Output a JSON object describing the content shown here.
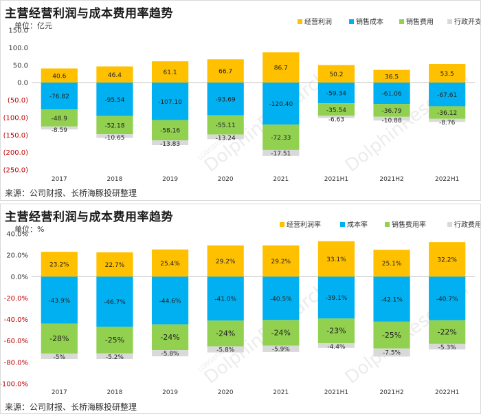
{
  "colors": {
    "profit": "#FFC000",
    "cost": "#00B0F0",
    "sales": "#92D050",
    "admin": "#D9D9D9",
    "negative_tick": "#C00000",
    "positive_tick": "#333333"
  },
  "source": "来源：公司财报、长桥海豚投研整理",
  "watermark": {
    "brand": "DolphinResearch",
    "small": "LONGBRIDGE"
  },
  "chart_data": [
    {
      "type": "bar",
      "stacked": true,
      "title": "主营经营利润与成本费用率趋势",
      "unit": "单位：亿元",
      "ylim": [
        -250,
        150
      ],
      "yticks": [
        -250,
        -200,
        -150,
        -100,
        -50,
        0,
        50,
        100,
        150
      ],
      "ytick_labels": [
        "(250.0)",
        "(200.0)",
        "(150.0)",
        "(100.0)",
        "(50.0)",
        "0.0",
        "50.0",
        "100.0",
        "150.0"
      ],
      "categories": [
        "2017",
        "2018",
        "2019",
        "2020",
        "2021",
        "2021H1",
        "2021H2",
        "2022H1"
      ],
      "series": [
        {
          "name": "经营利润",
          "color_key": "profit",
          "values": [
            40.6,
            46.4,
            61.1,
            66.7,
            86.7,
            50.2,
            36.5,
            53.5
          ],
          "labels": [
            "40.6",
            "46.4",
            "61.1",
            "66.7",
            "86.7",
            "50.2",
            "36.5",
            "53.5"
          ]
        },
        {
          "name": "销售成本",
          "color_key": "cost",
          "values": [
            -76.82,
            -95.54,
            -107.1,
            -93.69,
            -120.4,
            -59.34,
            -61.06,
            -67.61
          ],
          "labels": [
            "-76.82",
            "-95.54",
            "-107.10",
            "-93.69",
            "-120.40",
            "-59.34",
            "-61.06",
            "-67.61"
          ]
        },
        {
          "name": "销售费用",
          "color_key": "sales",
          "values": [
            -48.9,
            -52.18,
            -58.16,
            -55.11,
            -72.33,
            -35.54,
            -36.79,
            -36.12
          ],
          "labels": [
            "-48.9",
            "-52.18",
            "-58.16",
            "-55.11",
            "-72.33",
            "-35.54",
            "-36.79",
            "-36.12"
          ]
        },
        {
          "name": "行政开支",
          "color_key": "admin",
          "values": [
            -8.59,
            -10.65,
            -13.83,
            -13.24,
            -17.51,
            -6.63,
            -10.88,
            -8.76
          ],
          "labels": [
            "-8.59",
            "-10.65",
            "-13.83",
            "-13.24",
            "-17.51",
            "-6.63",
            "-10.88",
            "-8.76"
          ]
        }
      ],
      "legend_position": "top-right"
    },
    {
      "type": "bar",
      "stacked": true,
      "title": "主营经营利润与成本费用率趋势",
      "unit": "单位：%",
      "ylim": [
        -100,
        40
      ],
      "yticks": [
        -100,
        -80,
        -60,
        -40,
        -20,
        0,
        20,
        40
      ],
      "ytick_labels": [
        "-100.0%",
        "-80.0%",
        "-60.0%",
        "-40.0%",
        "-20.0%",
        "0.0%",
        "20.0%",
        "40.0%"
      ],
      "categories": [
        "2017",
        "2018",
        "2019",
        "2020",
        "2021",
        "2021H1",
        "2021H2",
        "2022H1"
      ],
      "series": [
        {
          "name": "经营利润率",
          "color_key": "profit",
          "values": [
            23.2,
            22.7,
            25.4,
            29.2,
            29.2,
            33.1,
            25.1,
            32.2
          ],
          "labels": [
            "23.2%",
            "22.7%",
            "25.4%",
            "29.2%",
            "29.2%",
            "33.1%",
            "25.1%",
            "32.2%"
          ]
        },
        {
          "name": "成本率",
          "color_key": "cost",
          "values": [
            -43.9,
            -46.7,
            -44.6,
            -41.0,
            -40.5,
            -39.1,
            -42.1,
            -40.7
          ],
          "labels": [
            "-43.9%",
            "-46.7%",
            "-44.6%",
            "-41.0%",
            "-40.5%",
            "-39.1%",
            "-42.1%",
            "-40.7%"
          ]
        },
        {
          "name": "销售费用率",
          "color_key": "sales",
          "values": [
            -28,
            -25,
            -24,
            -24,
            -24,
            -23,
            -25,
            -22
          ],
          "labels": [
            "-28%",
            "-25%",
            "-24%",
            "-24%",
            "-24%",
            "-23%",
            "-25%",
            "-22%"
          ]
        },
        {
          "name": "行政费用率",
          "color_key": "admin",
          "values": [
            -5,
            -5.2,
            -5.8,
            -5.8,
            -5.9,
            -4.4,
            -7.5,
            -5.3
          ],
          "labels": [
            "-5%",
            "-5.2%",
            "-5.8%",
            "-5.8%",
            "-5.9%",
            "-4.4%",
            "-7.5%",
            "-5.3%"
          ]
        }
      ],
      "legend_position": "top-right"
    }
  ]
}
